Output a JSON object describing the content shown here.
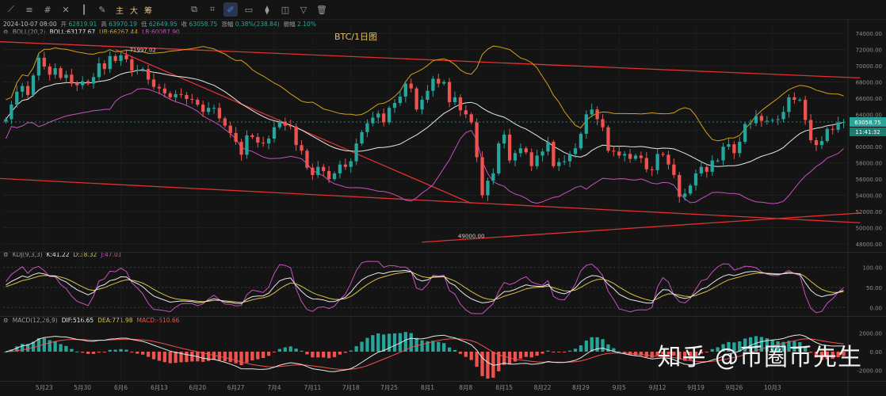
{
  "toolbar": {
    "icons": [
      "line-tool-icon",
      "horizontal-line-icon",
      "grid-icon",
      "crosshair-icon",
      "candles-icon",
      "brush-icon"
    ],
    "labels": [
      "主",
      "大",
      "筹"
    ],
    "right_icons": [
      "alert-icon",
      "indicator-icon",
      "draw-icon",
      "lock-icon",
      "compare-icon",
      "camera-icon",
      "filter-icon",
      "trash-icon"
    ]
  },
  "ohlc_line": {
    "date": "2024-10-07 08:00",
    "open_label": "开",
    "open": "62819.91",
    "high_label": "高",
    "high": "63970.19",
    "low_label": "低",
    "low": "62649.95",
    "close_label": "收",
    "close": "63058.75",
    "change_label": "涨幅",
    "change": "0.38%(238.84)",
    "amp_label": "振幅",
    "amp": "2.10%"
  },
  "boll_line": {
    "name": "BOLL(20,2)",
    "mid": "BOLL:63177.67",
    "ub": "UB:66267.44",
    "lb": "LB:60087.90"
  },
  "kdj_line": {
    "name": "KDJ(9,3,3)",
    "k": "K:41.22",
    "d": "D:38.32",
    "j": "J:47.01"
  },
  "macd_line": {
    "name": "MACD(12,26,9)",
    "dif": "DIF:516.65",
    "dea": "DEA:771.98",
    "macd": "MACD:-510.66"
  },
  "watermark": "知乎 @币圈币先生",
  "colors": {
    "up": "#26a69a",
    "down": "#ef5350",
    "mid": "#e8e8e8",
    "ub": "#d4a017",
    "lb": "#c850c0",
    "trend": "#e03030",
    "k": "#e8e8e8",
    "d": "#d4c040",
    "j": "#c850c0"
  },
  "chart_data": [
    {
      "type": "candlestick",
      "title": "BTC/1日图",
      "ylim": [
        47000,
        75000
      ],
      "yticks": [
        74000,
        72000,
        70000,
        68000,
        66000,
        64000,
        62000,
        60000,
        58000,
        56000,
        54000,
        52000,
        50000,
        48000
      ],
      "ytick_labels": [
        "74000.00",
        "72000.00",
        "70000.00",
        "68000.00",
        "66000.00",
        "64000.00",
        "62000.00",
        "60000.00",
        "58000.00",
        "56000.00",
        "54000.00",
        "52000.00",
        "50000.00",
        "48000.00"
      ],
      "xtick_labels": [
        "5月23",
        "5月30",
        "6月6",
        "6月13",
        "6月20",
        "6月27",
        "7月4",
        "7月11",
        "7月18",
        "7月25",
        "8月1",
        "8月8",
        "8月15",
        "8月22",
        "8月29",
        "9月5",
        "9月12",
        "9月19",
        "9月26",
        "10月3"
      ],
      "last_price": "63058.75",
      "time_label": "11:41:32",
      "annotations": [
        {
          "text": "71997.02",
          "price": 71997.02
        },
        {
          "text": "49000.00",
          "price": 49000.0
        }
      ],
      "closes": [
        63400,
        65200,
        66800,
        67500,
        66400,
        68800,
        71000,
        69900,
        68900,
        69700,
        68500,
        68900,
        67800,
        67600,
        68100,
        67800,
        68600,
        70300,
        69600,
        71200,
        70600,
        71300,
        70800,
        69400,
        69500,
        69600,
        68300,
        67400,
        67200,
        66600,
        66100,
        66500,
        66400,
        65900,
        65800,
        65200,
        64300,
        64800,
        64800,
        63500,
        62600,
        61700,
        60600,
        59000,
        61400,
        61200,
        60500,
        60400,
        61000,
        62400,
        63100,
        62600,
        62500,
        60200,
        59500,
        57400,
        56500,
        57500,
        57000,
        56000,
        56700,
        57800,
        57500,
        58200,
        60400,
        61800,
        62900,
        63600,
        64100,
        63000,
        64800,
        65400,
        66200,
        67800,
        67200,
        64600,
        65800,
        66900,
        68400,
        67800,
        68000,
        65500,
        66100,
        64500,
        64000,
        63000,
        58700,
        54000,
        55800,
        56700,
        60400,
        61500,
        58300,
        59200,
        59800,
        59300,
        57600,
        58900,
        59400,
        60600,
        57600,
        58100,
        58200,
        59100,
        59800,
        61600,
        64000,
        64600,
        63400,
        62400,
        59500,
        59400,
        58900,
        59100,
        58500,
        58900,
        58600,
        57200,
        57100,
        59100,
        59000,
        57800,
        56500,
        53800,
        54200,
        55200,
        56700,
        57500,
        56900,
        58300,
        58300,
        60000,
        60300,
        59200,
        60600,
        62800,
        62900,
        63800,
        63200,
        63200,
        63300,
        63400,
        64300,
        66100,
        65800,
        65800,
        63300,
        60800,
        60200,
        60700,
        62200,
        62100,
        63000,
        63058
      ]
    },
    {
      "type": "line",
      "title": "KDJ(9,3,3)",
      "ylim": [
        -15,
        115
      ],
      "yticks": [
        100,
        50,
        0
      ],
      "ytick_labels": [
        "100.00",
        "50.00",
        "0.00"
      ],
      "series": [
        {
          "name": "K:41.22",
          "values": []
        },
        {
          "name": "D:38.32",
          "values": []
        },
        {
          "name": "J:47.01",
          "values": []
        }
      ]
    },
    {
      "type": "bar",
      "title": "MACD(12,26,9)",
      "yticks": [
        2000,
        0,
        -2000
      ],
      "ytick_labels": [
        "2000.00",
        "0.00",
        "-2000.00"
      ],
      "series": [
        {
          "name": "DIF:516.65",
          "values": []
        },
        {
          "name": "DEA:771.98",
          "values": []
        },
        {
          "name": "MACD:-510.66",
          "values": []
        }
      ]
    }
  ]
}
